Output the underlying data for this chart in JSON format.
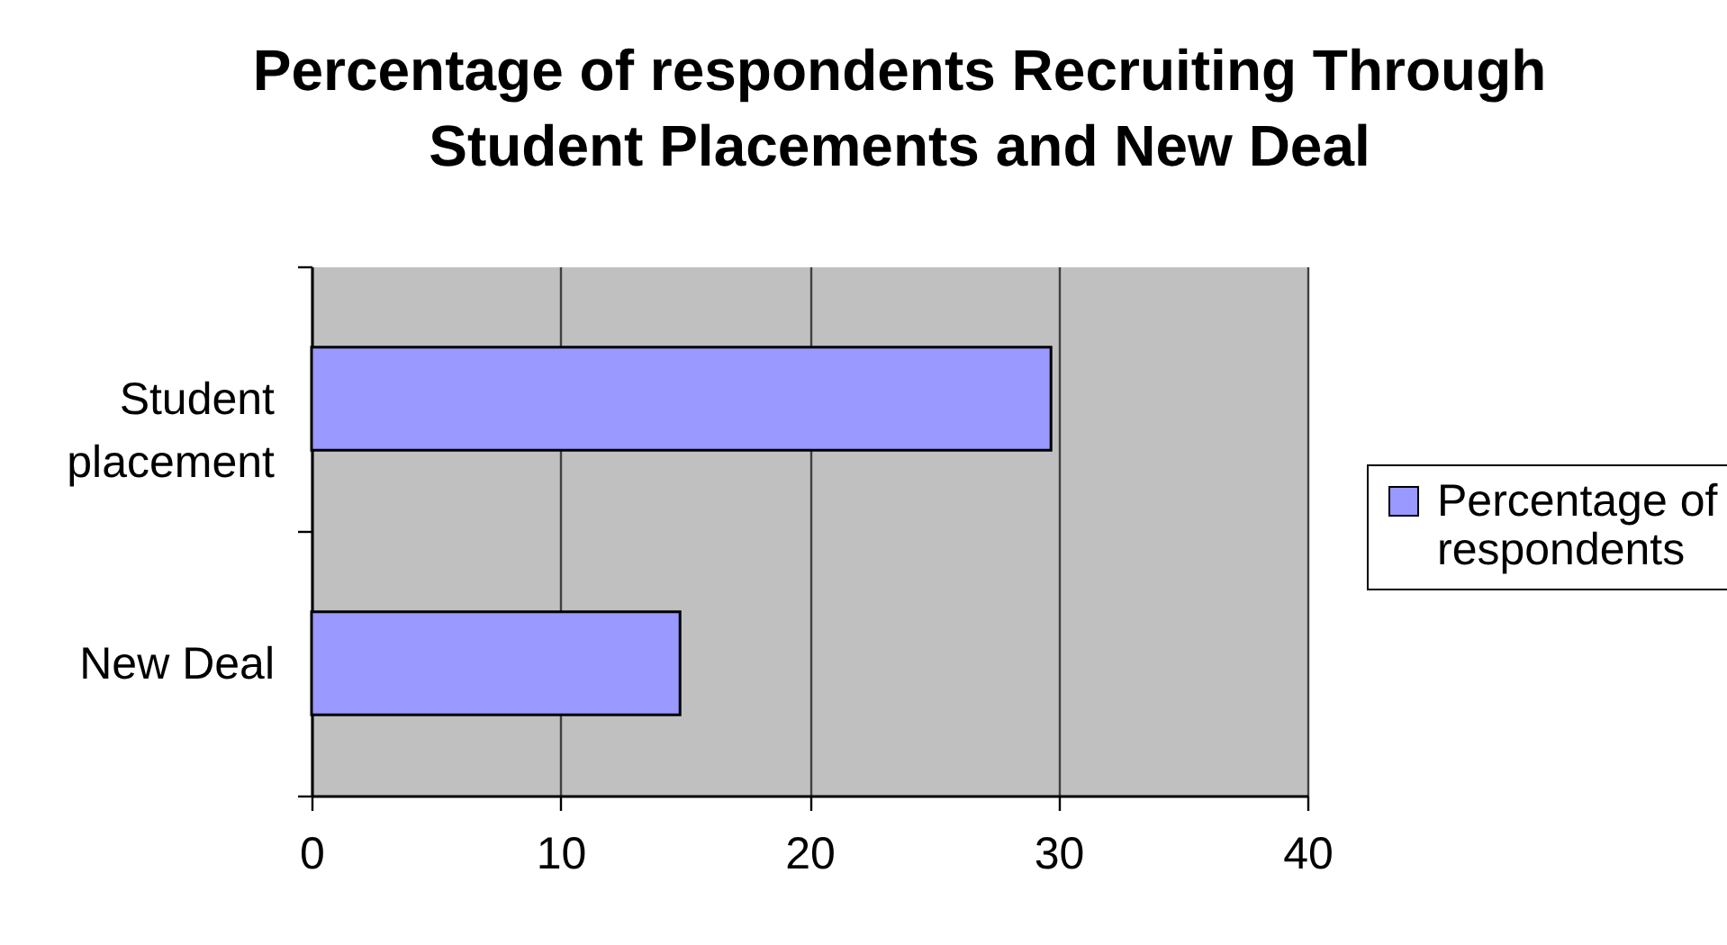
{
  "chart_data": {
    "type": "bar",
    "orientation": "horizontal",
    "title": "Percentage of respondents Recruiting Through Student Placements and New Deal",
    "categories": [
      "Student placement",
      "New Deal"
    ],
    "series": [
      {
        "name": "Percentage of respondents",
        "color": "#9999ff",
        "values": [
          29.7,
          14.8
        ]
      }
    ],
    "xlim": [
      0,
      40
    ],
    "xticks": [
      0,
      10,
      20,
      30,
      40
    ],
    "grid": "x",
    "legend": "right"
  }
}
